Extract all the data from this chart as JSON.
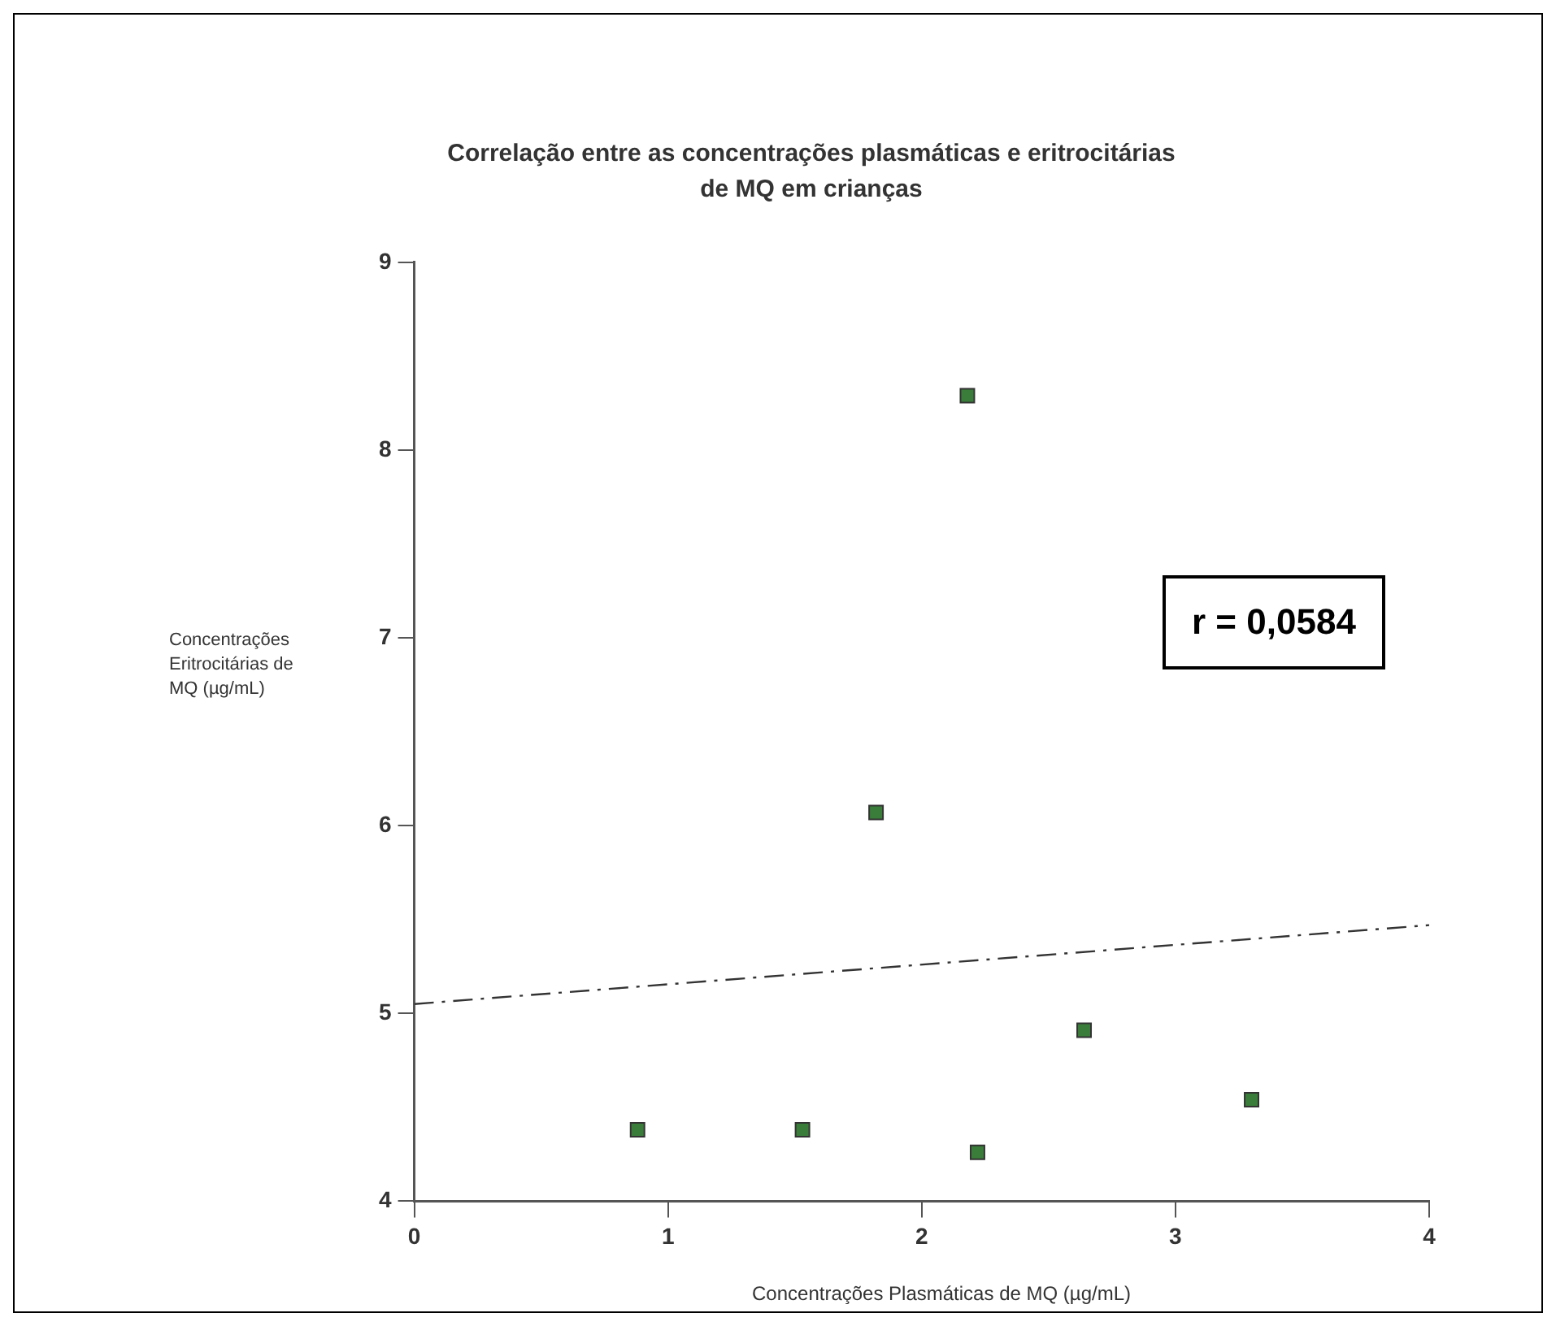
{
  "chart_data": {
    "type": "scatter",
    "title": "Correlação entre as concentrações plasmáticas e eritrocitárias de MQ em crianças",
    "xlabel": "Concentrações Plasmáticas de MQ (µg/mL)",
    "ylabel": "Concentrações Eritrocitárias de MQ (µg/mL)",
    "annotations": [
      "r = 0,0584"
    ],
    "series": [
      {
        "type": "scatter",
        "color": "#3a7d3a",
        "marker": "square",
        "x": [
          0.88,
          1.53,
          1.82,
          2.18,
          2.22,
          2.64,
          3.3
        ],
        "values": [
          4.38,
          4.38,
          6.07,
          8.29,
          4.26,
          4.91,
          4.54
        ]
      },
      {
        "type": "line",
        "color": "#333333",
        "line_style": "dashed",
        "marker": "none",
        "x": [
          0,
          4
        ],
        "values": [
          5.05,
          5.47
        ]
      }
    ],
    "xlim": [
      0,
      4
    ],
    "xticks": [
      0,
      1,
      2,
      3,
      4
    ],
    "ylim": [
      4,
      9
    ],
    "yticks": [
      4,
      5,
      6,
      7,
      8,
      9
    ],
    "grid": false,
    "legend": false
  }
}
